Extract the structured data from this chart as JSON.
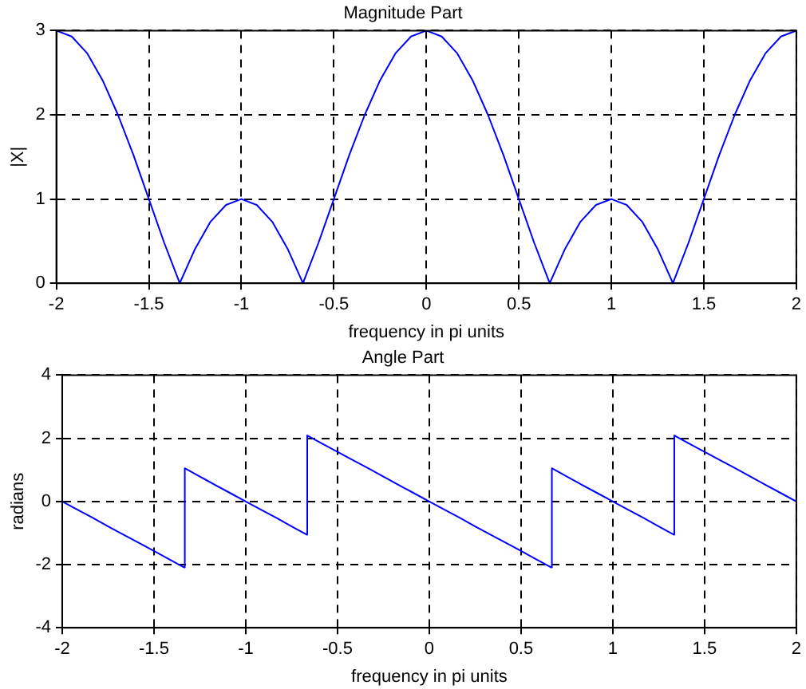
{
  "chart_data": [
    {
      "type": "line",
      "title": "Magnitude Part",
      "xlabel": "frequency in pi units",
      "ylabel": "|X|",
      "xlim": [
        -2,
        2
      ],
      "xticks": [
        -2,
        -1.5,
        -1,
        -0.5,
        0,
        0.5,
        1,
        1.5,
        2
      ],
      "ylim": [
        0,
        3
      ],
      "yticks": [
        0,
        1,
        2,
        3
      ],
      "grid": true,
      "marker": "none",
      "line_style": "solid",
      "x": [
        -2,
        -1.917,
        -1.833,
        -1.75,
        -1.667,
        -1.583,
        -1.5,
        -1.417,
        -1.333,
        -1.25,
        -1.167,
        -1.083,
        -1,
        -0.917,
        -0.833,
        -0.75,
        -0.667,
        -0.583,
        -0.5,
        -0.417,
        -0.333,
        -0.25,
        -0.167,
        -0.083,
        0,
        0.083,
        0.167,
        0.25,
        0.333,
        0.417,
        0.5,
        0.583,
        0.667,
        0.75,
        0.833,
        0.917,
        1,
        1.083,
        1.167,
        1.25,
        1.333,
        1.417,
        1.5,
        1.583,
        1.667,
        1.75,
        1.833,
        1.917,
        2
      ],
      "series": [
        {
          "color": "#0000ff",
          "values": [
            3,
            2.93,
            2.73,
            2.41,
            2,
            1.52,
            1,
            0.48,
            0,
            0.41,
            0.73,
            0.93,
            1,
            0.93,
            0.73,
            0.41,
            0,
            0.48,
            1,
            1.52,
            2,
            2.41,
            2.73,
            2.93,
            3,
            2.93,
            2.73,
            2.41,
            2,
            1.52,
            1,
            0.48,
            0,
            0.41,
            0.73,
            0.93,
            1,
            0.93,
            0.73,
            0.41,
            0,
            0.48,
            1,
            1.52,
            2,
            2.41,
            2.73,
            2.93,
            3
          ]
        }
      ]
    },
    {
      "type": "line",
      "title": "Angle Part",
      "xlabel": "frequency in pi units",
      "ylabel": "radians",
      "xlim": [
        -2,
        2
      ],
      "xticks": [
        -2,
        -1.5,
        -1,
        -0.5,
        0,
        0.5,
        1,
        1.5,
        2
      ],
      "ylim": [
        -4,
        4
      ],
      "yticks": [
        -4,
        -2,
        0,
        2,
        4
      ],
      "grid": true,
      "marker": "none",
      "line_style": "solid",
      "x": [
        -2,
        -1.917,
        -1.833,
        -1.75,
        -1.667,
        -1.583,
        -1.5,
        -1.417,
        -1.335,
        -1.332,
        -1.25,
        -1.167,
        -1.083,
        -1,
        -0.917,
        -0.833,
        -0.75,
        -0.668,
        -0.665,
        -0.583,
        -0.5,
        -0.417,
        -0.333,
        -0.25,
        -0.167,
        -0.083,
        0,
        0.083,
        0.167,
        0.25,
        0.333,
        0.417,
        0.5,
        0.583,
        0.665,
        0.668,
        0.75,
        0.833,
        0.917,
        1,
        1.083,
        1.167,
        1.25,
        1.332,
        1.335,
        1.417,
        1.5,
        1.583,
        1.667,
        1.75,
        1.833,
        1.917,
        2
      ],
      "series": [
        {
          "color": "#0000ff",
          "values": [
            0,
            -0.26,
            -0.52,
            -0.79,
            -1.05,
            -1.31,
            -1.57,
            -1.83,
            -2.09,
            1.05,
            0.79,
            0.52,
            0.26,
            0,
            -0.26,
            -0.52,
            -0.79,
            -1.05,
            2.09,
            1.83,
            1.57,
            1.31,
            1.05,
            0.79,
            0.52,
            0.26,
            0,
            -0.26,
            -0.52,
            -0.79,
            -1.05,
            -1.31,
            -1.57,
            -1.83,
            -2.09,
            1.05,
            0.79,
            0.52,
            0.26,
            0,
            -0.26,
            -0.52,
            -0.79,
            -1.05,
            2.09,
            1.83,
            1.57,
            1.31,
            1.05,
            0.79,
            0.52,
            0.26,
            0
          ]
        }
      ]
    }
  ]
}
